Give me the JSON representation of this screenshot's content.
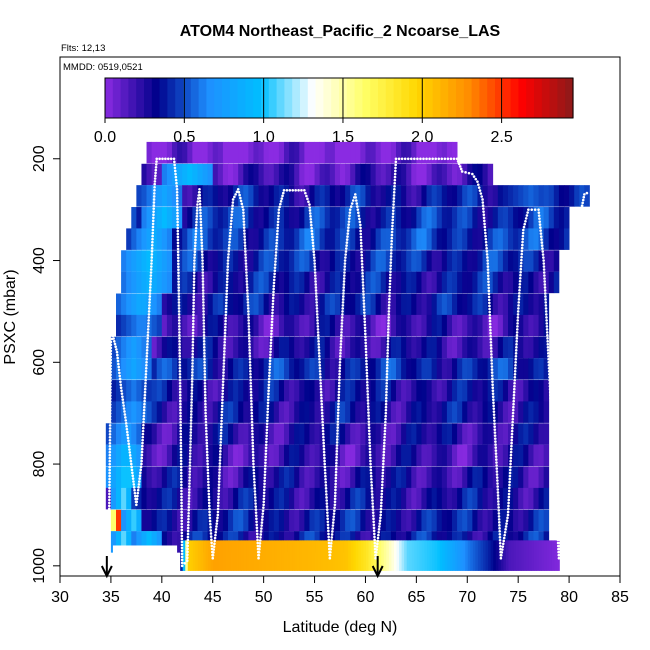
{
  "chart_data": {
    "type": "heatmap",
    "title": "ATOM4 Northeast_Pacific_2 Ncoarse_LAS",
    "flights_label": "Flts: 12,13",
    "dates_label": "MMDD: 0519,0521",
    "xlabel": "Latitude (deg N)",
    "ylabel": "PSXC (mbar)",
    "xlim": [
      30,
      85
    ],
    "ylim": [
      1020,
      0
    ],
    "x_ticks": [
      30,
      35,
      40,
      45,
      50,
      55,
      60,
      65,
      70,
      75,
      80,
      85
    ],
    "y_ticks": [
      200,
      400,
      600,
      800,
      1000
    ],
    "colorbar": {
      "range": [
        0,
        2.95
      ],
      "ticks": [
        "0.0",
        "0.5",
        "1.0",
        "1.5",
        "2.0",
        "2.5"
      ],
      "tick_values": [
        0,
        0.5,
        1.0,
        1.5,
        2.0,
        2.5
      ],
      "colors": [
        "#8a2be2",
        "#00008b",
        "#1e90ff",
        "#00bfff",
        "#ffffff",
        "#ffff66",
        "#ffd700",
        "#ff8c00",
        "#ff0000",
        "#8b1a1a"
      ]
    },
    "pressure_levels": [
      187,
      230,
      272,
      315,
      357,
      400,
      442,
      485,
      527,
      570,
      612,
      655,
      697,
      740,
      782,
      825,
      867,
      910,
      952
    ],
    "layers": [
      {
        "p": 187,
        "lat_range": [
          38.5,
          69
        ],
        "base": 0.02,
        "hi": []
      },
      {
        "p": 230,
        "lat_range": [
          38,
          72.5
        ],
        "base": 0.15,
        "hi": [
          [
            40,
            45,
            0.95
          ]
        ]
      },
      {
        "p": 272,
        "lat_range": [
          37.5,
          82
        ],
        "base": 0.35,
        "hi": [
          [
            38,
            42,
            0.8
          ],
          [
            73,
            79,
            0.55
          ]
        ]
      },
      {
        "p": 315,
        "lat_range": [
          37,
          80
        ],
        "base": 0.42,
        "hi": [
          [
            38,
            42,
            0.95
          ]
        ]
      },
      {
        "p": 357,
        "lat_range": [
          36.5,
          80
        ],
        "base": 0.45,
        "hi": [
          [
            37,
            41,
            0.85
          ]
        ]
      },
      {
        "p": 400,
        "lat_range": [
          36,
          79
        ],
        "base": 0.4,
        "hi": [
          [
            36,
            41,
            0.95
          ]
        ]
      },
      {
        "p": 442,
        "lat_range": [
          36,
          79
        ],
        "base": 0.35,
        "hi": [
          [
            36,
            41,
            0.9
          ]
        ]
      },
      {
        "p": 485,
        "lat_range": [
          35.5,
          78
        ],
        "base": 0.35,
        "hi": [
          [
            35.5,
            40,
            0.85
          ]
        ]
      },
      {
        "p": 527,
        "lat_range": [
          35.5,
          78
        ],
        "base": 0.2,
        "hi": [
          [
            35.5,
            40,
            0.65
          ]
        ]
      },
      {
        "p": 570,
        "lat_range": [
          35,
          78
        ],
        "base": 0.25,
        "hi": [
          [
            35,
            39,
            0.75
          ]
        ]
      },
      {
        "p": 612,
        "lat_range": [
          35,
          78
        ],
        "base": 0.4,
        "hi": [
          [
            35,
            39,
            0.8
          ]
        ]
      },
      {
        "p": 655,
        "lat_range": [
          35,
          78
        ],
        "base": 0.3,
        "hi": [
          [
            35,
            39,
            0.6
          ]
        ]
      },
      {
        "p": 697,
        "lat_range": [
          35,
          78
        ],
        "base": 0.3,
        "hi": [
          [
            35,
            39,
            0.7
          ]
        ]
      },
      {
        "p": 740,
        "lat_range": [
          34.5,
          78
        ],
        "base": 0.25,
        "hi": [
          [
            34.5,
            38,
            0.75
          ]
        ]
      },
      {
        "p": 782,
        "lat_range": [
          34.5,
          78
        ],
        "base": 0.2,
        "hi": [
          [
            34.5,
            38,
            0.95
          ]
        ]
      },
      {
        "p": 825,
        "lat_range": [
          34.5,
          78
        ],
        "base": 0.25,
        "hi": [
          [
            34.5,
            38,
            1.05
          ]
        ]
      },
      {
        "p": 867,
        "lat_range": [
          34.5,
          78
        ],
        "base": 0.3,
        "hi": [
          [
            35,
            37,
            1.1
          ]
        ]
      },
      {
        "p": 910,
        "lat_range": [
          35,
          78
        ],
        "base": 0.35,
        "hi": [
          [
            35,
            36,
            2.5
          ],
          [
            36,
            38,
            1.05
          ]
        ]
      },
      {
        "p": 952,
        "lat_range": [
          35,
          78
        ],
        "base": 0.35,
        "hi": [
          [
            35,
            37,
            1.1
          ],
          [
            37,
            40,
            0.95
          ]
        ]
      }
    ],
    "surface_band": {
      "p_range": [
        950,
        1010
      ],
      "points": [
        {
          "lat": 41.8,
          "v": 0.4
        },
        {
          "lat": 42.5,
          "v": 2.0
        },
        {
          "lat": 45,
          "v": 2.2
        },
        {
          "lat": 50,
          "v": 2.15
        },
        {
          "lat": 55,
          "v": 2.1
        },
        {
          "lat": 58,
          "v": 2.05
        },
        {
          "lat": 60,
          "v": 1.85
        },
        {
          "lat": 62,
          "v": 1.5
        },
        {
          "lat": 64,
          "v": 1.1
        },
        {
          "lat": 67,
          "v": 1.0
        },
        {
          "lat": 70,
          "v": 0.6
        },
        {
          "lat": 72,
          "v": 0.4
        },
        {
          "lat": 74,
          "v": 0.15
        },
        {
          "lat": 79,
          "v": 0.02
        }
      ]
    },
    "flight_track": [
      [
        34.8,
        970
      ],
      [
        35.0,
        560
      ],
      [
        35.2,
        548
      ],
      [
        35.6,
        580
      ],
      [
        36.0,
        650
      ],
      [
        36.5,
        720
      ],
      [
        37.0,
        800
      ],
      [
        37.5,
        880
      ],
      [
        38.0,
        800
      ],
      [
        38.5,
        600
      ],
      [
        39.0,
        400
      ],
      [
        39.3,
        250
      ],
      [
        39.5,
        200
      ],
      [
        41.2,
        200
      ],
      [
        41.5,
        260
      ],
      [
        41.7,
        500
      ],
      [
        41.9,
        800
      ],
      [
        42.0,
        1000
      ],
      [
        42.5,
        990
      ],
      [
        42.7,
        850
      ],
      [
        43.0,
        620
      ],
      [
        43.2,
        400
      ],
      [
        43.5,
        290
      ],
      [
        43.7,
        260
      ],
      [
        44.0,
        400
      ],
      [
        44.3,
        700
      ],
      [
        44.7,
        900
      ],
      [
        45.0,
        985
      ],
      [
        45.5,
        900
      ],
      [
        46.0,
        650
      ],
      [
        46.5,
        400
      ],
      [
        47.0,
        280
      ],
      [
        47.5,
        260
      ],
      [
        48.0,
        300
      ],
      [
        48.5,
        500
      ],
      [
        49.0,
        800
      ],
      [
        49.5,
        985
      ],
      [
        50.0,
        880
      ],
      [
        50.5,
        650
      ],
      [
        51.0,
        450
      ],
      [
        51.5,
        300
      ],
      [
        52.0,
        262
      ],
      [
        54.0,
        262
      ],
      [
        54.5,
        290
      ],
      [
        55.0,
        400
      ],
      [
        55.5,
        600
      ],
      [
        56.0,
        800
      ],
      [
        56.5,
        985
      ],
      [
        57.0,
        880
      ],
      [
        57.5,
        600
      ],
      [
        58.0,
        400
      ],
      [
        58.5,
        300
      ],
      [
        59.0,
        270
      ],
      [
        59.5,
        330
      ],
      [
        60.0,
        550
      ],
      [
        60.5,
        800
      ],
      [
        61.0,
        985
      ],
      [
        61.5,
        900
      ],
      [
        62.0,
        700
      ],
      [
        62.3,
        500
      ],
      [
        62.6,
        350
      ],
      [
        63.0,
        200
      ],
      [
        69.0,
        200
      ],
      [
        69.5,
        225
      ],
      [
        70.5,
        230
      ],
      [
        71.0,
        245
      ],
      [
        71.5,
        280
      ],
      [
        72.0,
        400
      ],
      [
        72.5,
        650
      ],
      [
        73.0,
        850
      ],
      [
        73.3,
        985
      ],
      [
        74.0,
        900
      ],
      [
        74.5,
        700
      ],
      [
        75.0,
        500
      ],
      [
        75.5,
        340
      ],
      [
        76.0,
        300
      ],
      [
        77.0,
        300
      ],
      [
        77.5,
        400
      ],
      [
        78.0,
        600
      ],
      [
        78.5,
        800
      ],
      [
        79.0,
        985
      ],
      [
        79.5,
        800
      ],
      [
        80.0,
        600
      ],
      [
        80.5,
        430
      ],
      [
        81.0,
        320
      ],
      [
        81.5,
        270
      ],
      [
        82.0,
        265
      ]
    ],
    "arrows": [
      34.6,
      61.2
    ]
  }
}
